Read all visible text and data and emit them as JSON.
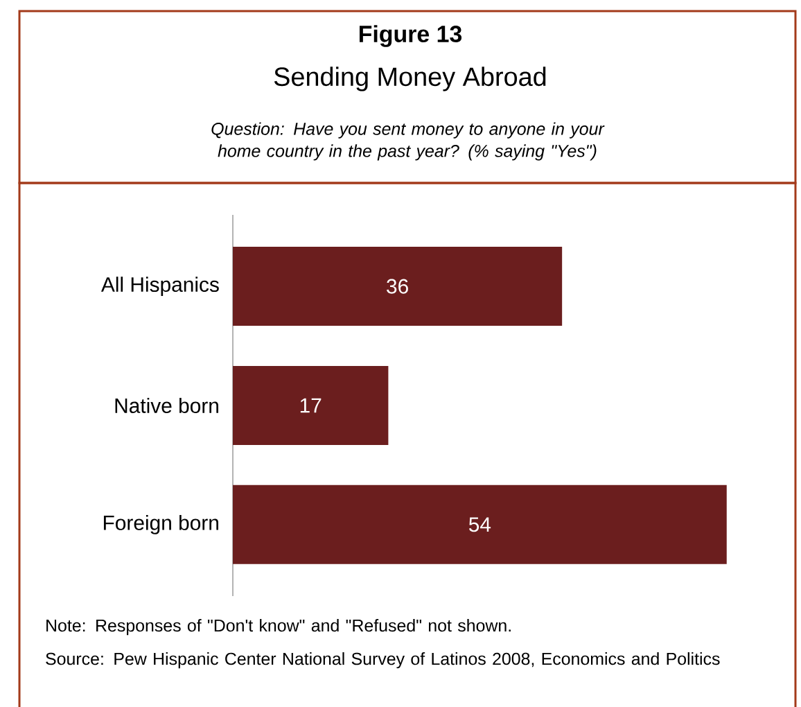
{
  "chart_data": {
    "type": "bar",
    "orientation": "horizontal",
    "title": "Figure 13",
    "subtitle": "Sending Money Abroad",
    "annotations": [
      "Question: Have you sent money to anyone in your home country in the past year? (% saying \"Yes\")",
      "Note: Responses of \"Don't know\" and \"Refused\" not shown.",
      "Source: Pew Hispanic Center National Survey of Latinos 2008, Economics and Politics"
    ],
    "categories": [
      "All Hispanics",
      "Native born",
      "Foreign born"
    ],
    "values": [
      36,
      17,
      54
    ],
    "color": "#6b1e1e",
    "data_labels": true
  }
}
